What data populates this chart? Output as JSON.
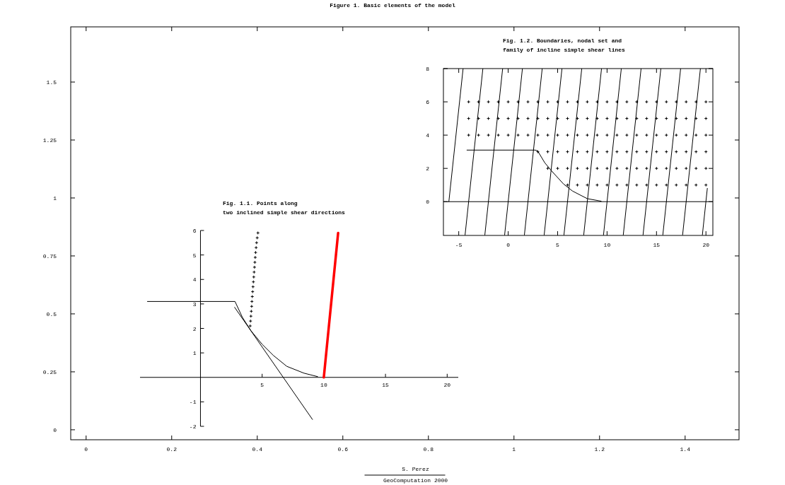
{
  "chart_data": [
    {
      "type": "line",
      "title": "Figure 1. Basic elements of the model",
      "xlabel": "S. Perez",
      "annotations": [
        "GeoComputation 2000"
      ],
      "xlim": [
        -0.036,
        1.526
      ],
      "ylim": [
        -0.043,
        1.738
      ],
      "xticks": [
        0,
        0.2,
        0.4,
        0.6,
        0.8,
        1,
        1.2,
        1.4
      ],
      "yticks": [
        0,
        0.25,
        0.5,
        0.75,
        1,
        1.25,
        1.5
      ],
      "grid": false
    },
    {
      "type": "line",
      "title": "Fig. 1.1. Points along\ntwo inclined simple shear directions",
      "xlim": [
        -4.9,
        20.9
      ],
      "ylim": [
        -2,
        6
      ],
      "xticks": [
        5,
        10,
        15,
        20
      ],
      "yticks": [
        -2,
        -1,
        1,
        2,
        3,
        4,
        5,
        6
      ],
      "grid": false,
      "series": [
        {
          "color": "#000000",
          "x": [
            -4.3,
            2.8,
            3.4,
            4.1,
            5,
            5.9,
            7,
            8.4,
            9.5
          ],
          "values": [
            3.1,
            3.1,
            2.45,
            1.9,
            1.35,
            0.9,
            0.45,
            0.17,
            0.03
          ]
        },
        {
          "color": "#000000",
          "x": [
            2.77,
            9.08
          ],
          "values": [
            2.86,
            -1.72
          ]
        },
        {
          "type": "scatter",
          "marker": "cross",
          "color": "#000000",
          "x": [
            4.03,
            4.06,
            4.09,
            4.12,
            4.15,
            4.17,
            4.2,
            4.23,
            4.26,
            4.29,
            4.32,
            4.35,
            4.38,
            4.41,
            4.44,
            4.47,
            4.51,
            4.55,
            4.6,
            4.66
          ],
          "values": [
            2.1,
            2.3,
            2.5,
            2.7,
            2.9,
            3.1,
            3.3,
            3.5,
            3.7,
            3.9,
            4.1,
            4.3,
            4.5,
            4.7,
            4.9,
            5.1,
            5.3,
            5.5,
            5.7,
            5.9
          ]
        },
        {
          "color": "#ff0000",
          "x": [
            10,
            11.16
          ],
          "values": [
            0,
            5.9
          ]
        }
      ]
    },
    {
      "type": "line",
      "title": "Fig. 1.2. Boundaries, nodal set and\nfamily of incline simple shear lines",
      "xlim": [
        -6.55,
        20.7
      ],
      "ylim": [
        -2.03,
        8
      ],
      "xticks": [
        -5,
        0,
        5,
        10,
        15,
        20
      ],
      "yticks": [
        0,
        2,
        4,
        6,
        8
      ],
      "grid": false,
      "ref_lines": [
        {
          "axis": "y",
          "value": 0
        }
      ],
      "series": [
        {
          "color": "#000000",
          "x": [
            -6,
            -4.56
          ],
          "values": [
            0,
            8
          ]
        },
        {
          "color": "#000000",
          "x": [
            -4.36,
            -2.56
          ],
          "values": [
            -2,
            8
          ]
        },
        {
          "color": "#000000",
          "x": [
            -2.36,
            -0.56
          ],
          "values": [
            -2,
            8
          ]
        },
        {
          "color": "#000000",
          "x": [
            -0.36,
            1.44
          ],
          "values": [
            -2,
            8
          ]
        },
        {
          "color": "#000000",
          "x": [
            1.64,
            3.44
          ],
          "values": [
            -2,
            8
          ]
        },
        {
          "color": "#000000",
          "x": [
            3.64,
            5.44
          ],
          "values": [
            -2,
            8
          ]
        },
        {
          "color": "#000000",
          "x": [
            5.64,
            7.44
          ],
          "values": [
            -2,
            8
          ]
        },
        {
          "color": "#000000",
          "x": [
            7.64,
            9.44
          ],
          "values": [
            -2,
            8
          ]
        },
        {
          "color": "#000000",
          "x": [
            9.64,
            11.44
          ],
          "values": [
            -2,
            8
          ]
        },
        {
          "color": "#000000",
          "x": [
            11.64,
            13.44
          ],
          "values": [
            -2,
            8
          ]
        },
        {
          "color": "#000000",
          "x": [
            13.64,
            15.44
          ],
          "values": [
            -2,
            8
          ]
        },
        {
          "color": "#000000",
          "x": [
            15.64,
            17.44
          ],
          "values": [
            -2,
            8
          ]
        },
        {
          "color": "#000000",
          "x": [
            17.64,
            19.44
          ],
          "values": [
            -2,
            8
          ]
        },
        {
          "color": "#000000",
          "x": [
            19.64,
            20.14
          ],
          "values": [
            -2,
            0.8
          ]
        },
        {
          "color": "#000000",
          "x": [
            -4.17,
            2.74,
            2.98,
            3.7,
            4.4,
            5.6,
            6.5,
            8,
            9.4
          ],
          "values": [
            3.1,
            3.1,
            3.05,
            2.34,
            1.84,
            1.06,
            0.64,
            0.18,
            0.03
          ]
        },
        {
          "type": "scatter",
          "marker": "cross",
          "color": "#000000",
          "x": [
            -4,
            -3,
            -2,
            -1,
            0,
            1,
            2,
            3,
            4,
            5,
            6,
            7,
            8,
            9,
            10,
            11,
            12,
            13,
            14,
            15,
            16,
            17,
            18,
            19,
            20
          ],
          "values": [
            6,
            6,
            6,
            6,
            6,
            6,
            6,
            6,
            6,
            6,
            6,
            6,
            6,
            6,
            6,
            6,
            6,
            6,
            6,
            6,
            6,
            6,
            6,
            6,
            6
          ]
        },
        {
          "type": "scatter",
          "marker": "cross",
          "color": "#000000",
          "x": [
            -4,
            -3,
            -2,
            -1,
            0,
            1,
            2,
            3,
            4,
            5,
            6,
            7,
            8,
            9,
            10,
            11,
            12,
            13,
            14,
            15,
            16,
            17,
            18,
            19,
            20
          ],
          "values": [
            5,
            5,
            5,
            5,
            5,
            5,
            5,
            5,
            5,
            5,
            5,
            5,
            5,
            5,
            5,
            5,
            5,
            5,
            5,
            5,
            5,
            5,
            5,
            5,
            5
          ]
        },
        {
          "type": "scatter",
          "marker": "cross",
          "color": "#000000",
          "x": [
            -4,
            -3,
            -2,
            -1,
            0,
            1,
            2,
            3,
            4,
            5,
            6,
            7,
            8,
            9,
            10,
            11,
            12,
            13,
            14,
            15,
            16,
            17,
            18,
            19,
            20
          ],
          "values": [
            4,
            4,
            4,
            4,
            4,
            4,
            4,
            4,
            4,
            4,
            4,
            4,
            4,
            4,
            4,
            4,
            4,
            4,
            4,
            4,
            4,
            4,
            4,
            4,
            4
          ]
        },
        {
          "type": "scatter",
          "marker": "cross",
          "color": "#000000",
          "x": [
            3,
            4,
            5,
            6,
            7,
            8,
            9,
            10,
            11,
            12,
            13,
            14,
            15,
            16,
            17,
            18,
            19,
            20
          ],
          "values": [
            3,
            3,
            3,
            3,
            3,
            3,
            3,
            3,
            3,
            3,
            3,
            3,
            3,
            3,
            3,
            3,
            3,
            3
          ]
        },
        {
          "type": "scatter",
          "marker": "cross",
          "color": "#000000",
          "x": [
            4,
            5,
            6,
            7,
            8,
            9,
            10,
            11,
            12,
            13,
            14,
            15,
            16,
            17,
            18,
            19,
            20
          ],
          "values": [
            2,
            2,
            2,
            2,
            2,
            2,
            2,
            2,
            2,
            2,
            2,
            2,
            2,
            2,
            2,
            2,
            2
          ]
        },
        {
          "type": "scatter",
          "marker": "cross",
          "color": "#000000",
          "x": [
            6,
            7,
            8,
            9,
            10,
            11,
            12,
            13,
            14,
            15,
            16,
            17,
            18,
            19,
            20
          ],
          "values": [
            1,
            1,
            1,
            1,
            1,
            1,
            1,
            1,
            1,
            1,
            1,
            1,
            1,
            1,
            1
          ]
        }
      ]
    }
  ]
}
